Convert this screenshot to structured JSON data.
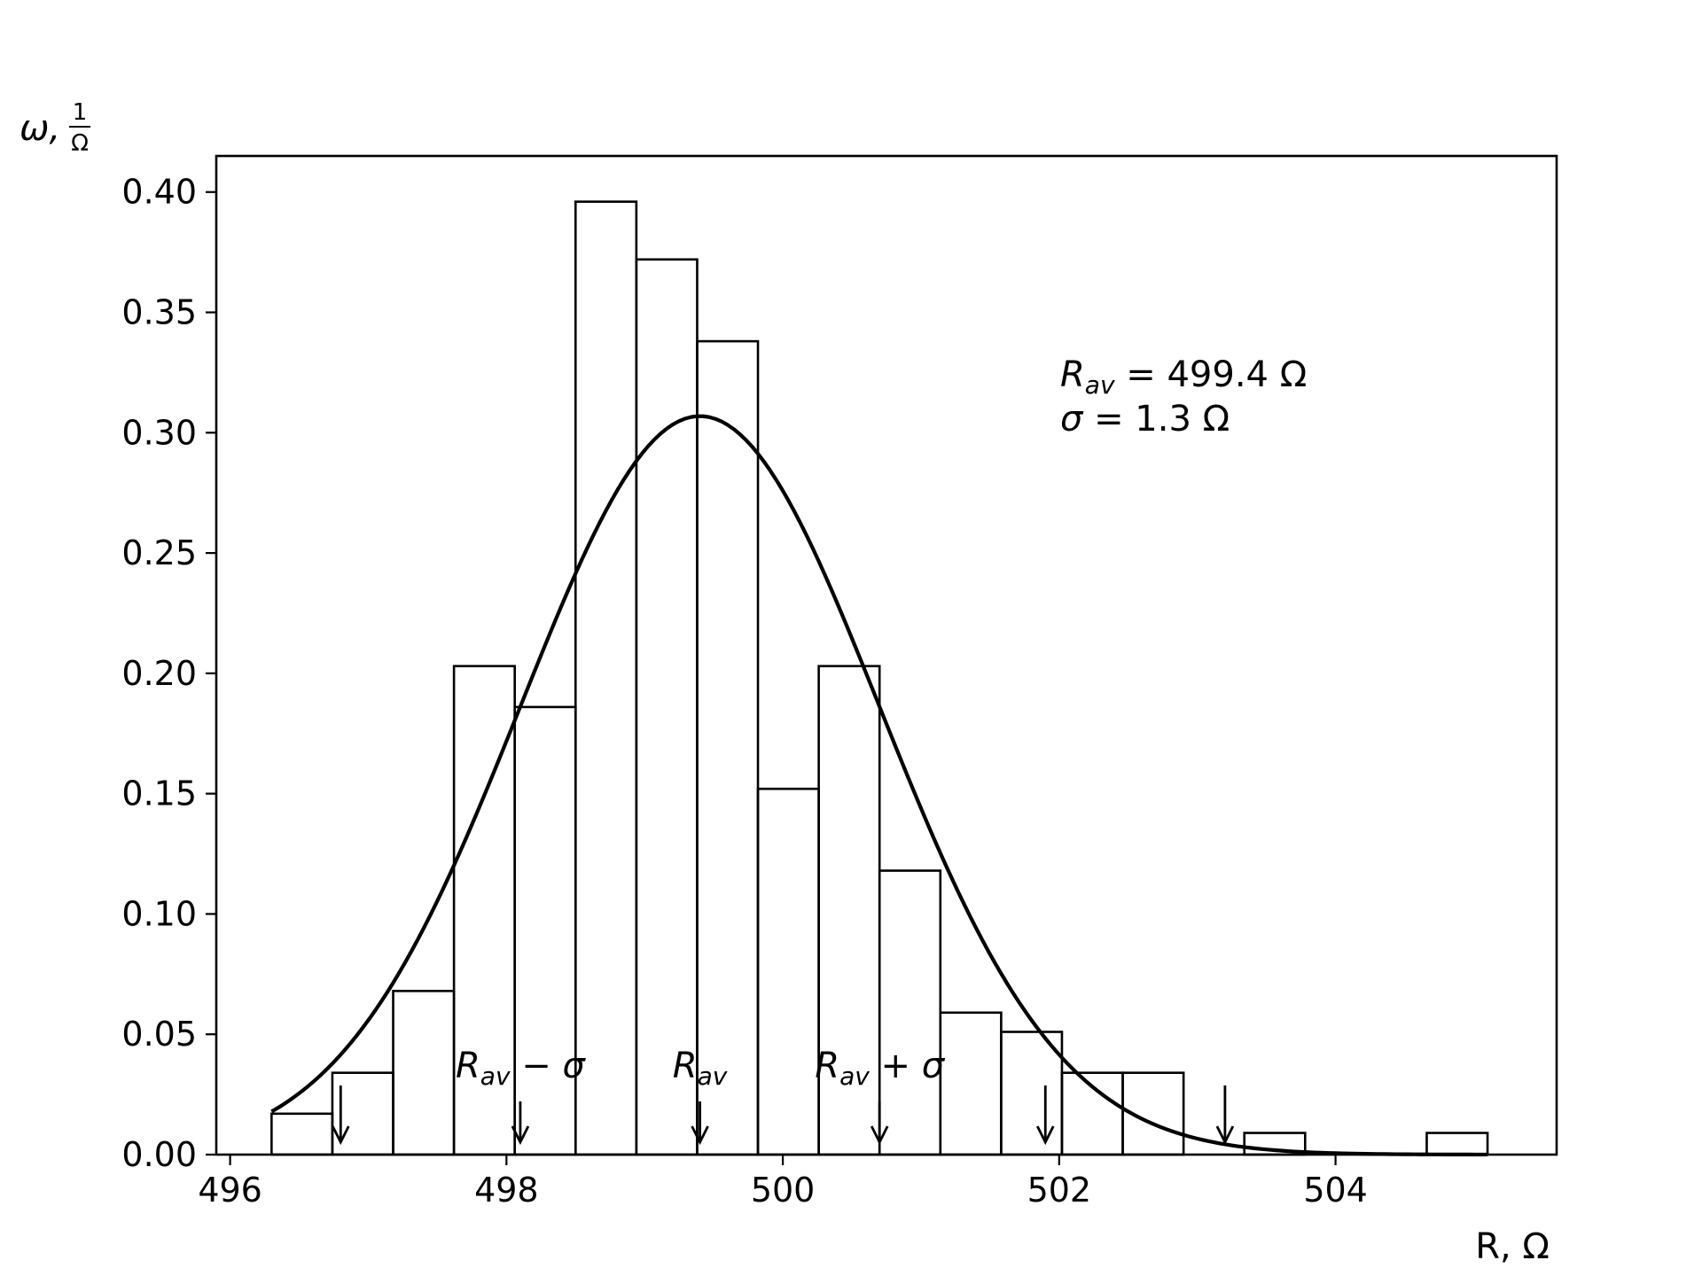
{
  "chart_data": {
    "type": "bar",
    "subtype": "histogram-with-normal-fit",
    "xlabel": "R, Ω",
    "ylabel": "ω, 1/Ω",
    "ylabel_main": "ω,",
    "ylabel_frac_num": "1",
    "ylabel_frac_den": "Ω",
    "xlim": [
      495.9,
      505.6
    ],
    "ylim": [
      0.0,
      0.415
    ],
    "xticks": [
      496,
      498,
      500,
      502,
      504
    ],
    "xtick_labels": [
      "496",
      "498",
      "500",
      "502",
      "504"
    ],
    "yticks": [
      0.0,
      0.05,
      0.1,
      0.15,
      0.2,
      0.25,
      0.3,
      0.35,
      0.4
    ],
    "ytick_labels": [
      "0.00",
      "0.05",
      "0.10",
      "0.15",
      "0.20",
      "0.25",
      "0.30",
      "0.35",
      "0.40"
    ],
    "grid": false,
    "histogram": {
      "bin_edges": [
        496.3,
        496.74,
        497.18,
        497.62,
        498.06,
        498.5,
        498.94,
        499.38,
        499.82,
        500.26,
        500.7,
        501.14,
        501.58,
        502.02,
        502.46,
        502.9,
        503.34,
        503.78,
        504.22,
        504.66,
        505.1
      ],
      "values": [
        0.017,
        0.034,
        0.068,
        0.203,
        0.186,
        0.396,
        0.372,
        0.338,
        0.152,
        0.203,
        0.118,
        0.059,
        0.051,
        0.034,
        0.034,
        0.0,
        0.009,
        0.0,
        0.0,
        0.009
      ]
    },
    "normal_fit": {
      "mean": 499.4,
      "sigma": 1.3,
      "x_range": [
        496.3,
        505.1
      ]
    },
    "markers": [
      {
        "x": 496.8,
        "label": "",
        "short": false
      },
      {
        "x": 498.1,
        "label_main": "R",
        "label_sub": "av",
        "label_tail": " − σ",
        "short": true
      },
      {
        "x": 499.4,
        "label_main": "R",
        "label_sub": "av",
        "label_tail": "",
        "short": true
      },
      {
        "x": 500.7,
        "label_main": "R",
        "label_sub": "av",
        "label_tail": " + σ",
        "short": true
      },
      {
        "x": 501.9,
        "label": "",
        "short": false
      },
      {
        "x": 503.2,
        "label": "",
        "short": false
      }
    ],
    "annotation": {
      "line1_main": "R",
      "line1_sub": "av",
      "line1_rest": " = 499.4 Ω",
      "line2_main": "σ",
      "line2_rest": " = 1.3 Ω"
    }
  }
}
